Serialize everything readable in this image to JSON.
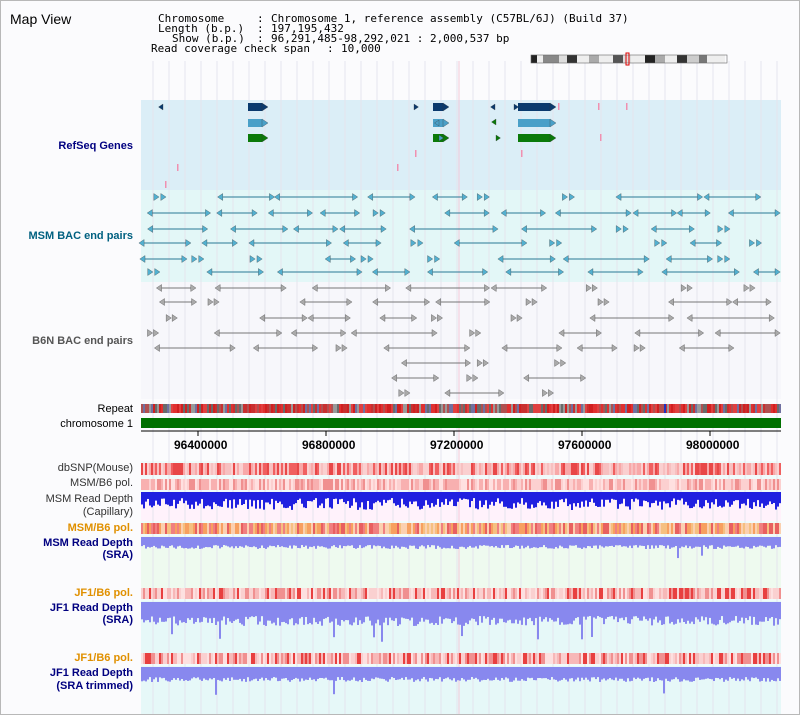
{
  "title": "Map View",
  "header": {
    "chromosome_label": "Chromosome",
    "chromosome_value": "Chromosome 1, reference assembly (C57BL/6J) (Build 37)",
    "length_label": "Length (b.p.)",
    "length_value": "197,195,432",
    "show_label": "Show (b.p.)",
    "show_value": "96,291,485-98,292,021 : 2,000,537 bp",
    "coverage_label": "Read coverage check span",
    "coverage_value": "10,000"
  },
  "tracks": {
    "refseq": "RefSeq Genes",
    "msm_bac": "MSM BAC end pairs",
    "b6n_bac": "B6N BAC end pairs",
    "repeat": "Repeat",
    "chromosome": "chromosome 1",
    "dbsnp": "dbSNP(Mouse)",
    "msm_b6_pol_1": "MSM/B6 pol.",
    "msm_depth_cap_1": "MSM Read Depth",
    "msm_depth_cap_2": "(Capillary)",
    "msm_b6_pol_2": "MSM/B6 pol.",
    "msm_depth_sra_1": "MSM Read Depth",
    "msm_depth_sra_2": "(SRA)",
    "jf1_b6_pol_1": "JF1/B6 pol.",
    "jf1_depth_sra_1": "JF1 Read Depth",
    "jf1_depth_sra_2": "(SRA)",
    "jf1_b6_pol_2": "JF1/B6 pol.",
    "jf1_depth_trim_1": "JF1 Read Depth",
    "jf1_depth_trim_2": "(SRA trimmed)"
  },
  "axis_ticks": [
    "96400000",
    "96800000",
    "97200000",
    "97600000",
    "98000000"
  ],
  "colors": {
    "refseq_bg": "#dbeef7",
    "msm_bg": "#e3f7f7",
    "b6n_bg": "#f7f7fb",
    "chromosome_bar": "#007000",
    "gene_dark": "#0a3a6e",
    "gene_mid": "#4aa0c8",
    "gene_green": "#0a7a0a",
    "msm_label": "#006080",
    "b6n_label": "#555555",
    "navy_label": "#000080",
    "orange_label": "#e09000",
    "depth_blue": "#2020e0",
    "depth_light": "#8888ee"
  }
}
